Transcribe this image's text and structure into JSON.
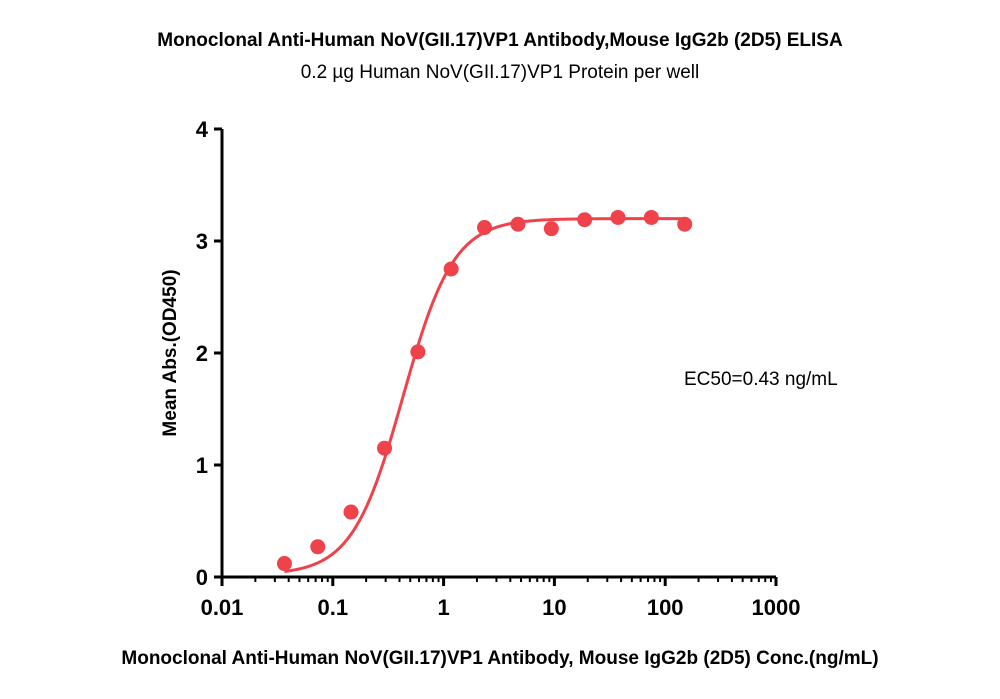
{
  "chart_data": {
    "type": "scatter",
    "title": "Monoclonal Anti-Human NoV(GII.17)VP1 Antibody,Mouse IgG2b (2D5) ELISA",
    "subtitle": "0.2 µg  Human NoV(GII.17)VP1 Protein per well",
    "xlabel": "Monoclonal Anti-Human NoV(GII.17)VP1 Antibody, Mouse IgG2b (2D5) Conc.(ng/mL)",
    "ylabel": "Mean Abs.(OD450)",
    "x_scale": "log",
    "xlim": [
      0.01,
      1000
    ],
    "ylim": [
      0,
      4
    ],
    "x_ticks": [
      "0.01",
      "0.1",
      "1",
      "10",
      "100",
      "1000"
    ],
    "y_ticks": [
      "0",
      "1",
      "2",
      "3",
      "4"
    ],
    "grid": false,
    "series": [
      {
        "color": "#f0424a",
        "points": [
          {
            "x": 0.0366,
            "y": 0.12
          },
          {
            "x": 0.0732,
            "y": 0.27
          },
          {
            "x": 0.146,
            "y": 0.58
          },
          {
            "x": 0.293,
            "y": 1.15
          },
          {
            "x": 0.586,
            "y": 2.01
          },
          {
            "x": 1.17,
            "y": 2.75
          },
          {
            "x": 2.34,
            "y": 3.12
          },
          {
            "x": 4.69,
            "y": 3.15
          },
          {
            "x": 9.38,
            "y": 3.11
          },
          {
            "x": 18.75,
            "y": 3.19
          },
          {
            "x": 37.5,
            "y": 3.21
          },
          {
            "x": 75,
            "y": 3.21
          },
          {
            "x": 150,
            "y": 3.15
          }
        ],
        "fit": {
          "bottom": 0.02,
          "top": 3.2,
          "ec50": 0.43,
          "hill": 1.9
        }
      }
    ],
    "annotations": [
      {
        "text": "EC50=0.43 ng/mL",
        "x": 150,
        "y": 1.8
      }
    ]
  }
}
